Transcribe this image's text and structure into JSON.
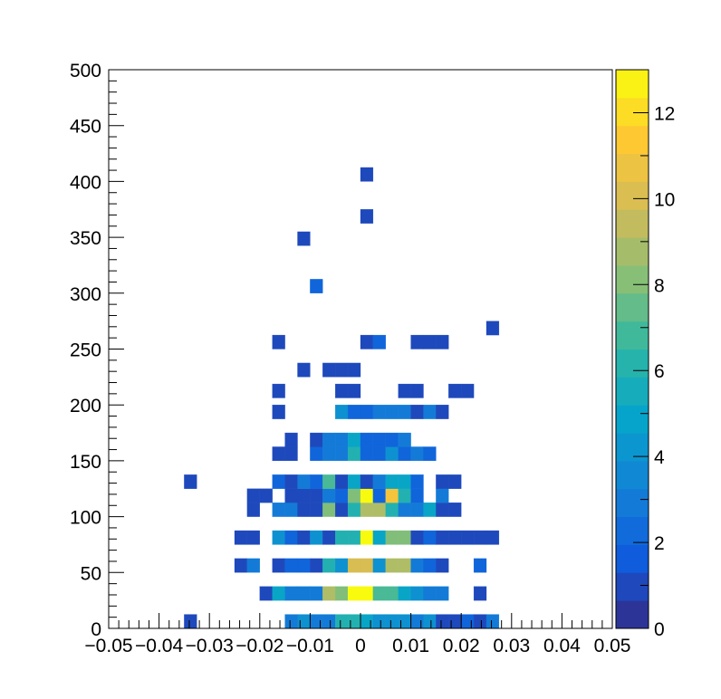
{
  "chart_data": {
    "type": "heatmap",
    "title": "",
    "xlabel": "",
    "ylabel": "",
    "xlim": [
      -0.05,
      0.05
    ],
    "ylim": [
      0,
      500
    ],
    "zlim": [
      0,
      13
    ],
    "bin_width_x": 0.0025,
    "bin_width_y": 12.5,
    "x_tick_labels": [
      "−0.05",
      "−0.04",
      "−0.03",
      "−0.02",
      "−0.01",
      "0",
      "0.01",
      "0.02",
      "0.03",
      "0.04",
      "0.05"
    ],
    "x_tick_values": [
      -0.05,
      -0.04,
      -0.03,
      -0.02,
      -0.01,
      0,
      0.01,
      0.02,
      0.03,
      0.04,
      0.05
    ],
    "y_tick_labels": [
      "0",
      "50",
      "100",
      "150",
      "200",
      "250",
      "300",
      "350",
      "400",
      "450",
      "500"
    ],
    "y_tick_values": [
      0,
      50,
      100,
      150,
      200,
      250,
      300,
      350,
      400,
      450,
      500
    ],
    "z_tick_labels": [
      "0",
      "2",
      "4",
      "6",
      "8",
      "10",
      "12"
    ],
    "z_tick_values": [
      0,
      2,
      4,
      6,
      8,
      10,
      12
    ],
    "grid": false,
    "colormap": [
      "#352a87",
      "#0f5cdd",
      "#1481d6",
      "#06a4ca",
      "#2eb7a4",
      "#87bf77",
      "#d1bb59",
      "#fec832",
      "#f9fb0e"
    ],
    "bins": [
      [
        -0.03375,
        6.25,
        1
      ],
      [
        -0.01375,
        6.25,
        3
      ],
      [
        -0.01125,
        6.25,
        4
      ],
      [
        -0.00875,
        6.25,
        3
      ],
      [
        -0.00625,
        6.25,
        3
      ],
      [
        -0.00375,
        6.25,
        6
      ],
      [
        -0.00125,
        6.25,
        6
      ],
      [
        0.00125,
        6.25,
        5
      ],
      [
        0.00375,
        6.25,
        4
      ],
      [
        0.00625,
        6.25,
        4
      ],
      [
        0.00875,
        6.25,
        4
      ],
      [
        0.01125,
        6.25,
        3
      ],
      [
        0.01375,
        6.25,
        4
      ],
      [
        0.01625,
        6.25,
        1
      ],
      [
        0.01875,
        6.25,
        1
      ],
      [
        0.02125,
        6.25,
        2
      ],
      [
        0.02375,
        6.25,
        1
      ],
      [
        0.02625,
        6.25,
        3
      ],
      [
        -0.01875,
        31.25,
        1
      ],
      [
        -0.01625,
        31.25,
        5
      ],
      [
        -0.01375,
        31.25,
        3
      ],
      [
        -0.01125,
        31.25,
        3
      ],
      [
        -0.00875,
        31.25,
        3
      ],
      [
        -0.00625,
        31.25,
        9
      ],
      [
        -0.00375,
        31.25,
        8
      ],
      [
        -0.00125,
        31.25,
        13
      ],
      [
        0.00125,
        31.25,
        13
      ],
      [
        0.00375,
        31.25,
        7
      ],
      [
        0.00625,
        31.25,
        7
      ],
      [
        0.00875,
        31.25,
        5
      ],
      [
        0.01125,
        31.25,
        4
      ],
      [
        0.01375,
        31.25,
        3
      ],
      [
        0.01625,
        31.25,
        3
      ],
      [
        0.02375,
        31.25,
        1
      ],
      [
        -0.02375,
        56.25,
        1
      ],
      [
        -0.02125,
        56.25,
        3
      ],
      [
        -0.01625,
        56.25,
        1
      ],
      [
        -0.01375,
        56.25,
        2
      ],
      [
        -0.01125,
        56.25,
        2
      ],
      [
        -0.00875,
        56.25,
        1
      ],
      [
        -0.00625,
        56.25,
        6
      ],
      [
        -0.00375,
        56.25,
        4
      ],
      [
        -0.00125,
        56.25,
        10
      ],
      [
        0.00125,
        56.25,
        10
      ],
      [
        0.00375,
        56.25,
        4
      ],
      [
        0.00625,
        56.25,
        9
      ],
      [
        0.00875,
        56.25,
        9
      ],
      [
        0.01125,
        56.25,
        3
      ],
      [
        0.01375,
        56.25,
        2
      ],
      [
        0.01625,
        56.25,
        1
      ],
      [
        0.02375,
        56.25,
        2
      ],
      [
        -0.02375,
        81.25,
        1
      ],
      [
        -0.02125,
        81.25,
        1
      ],
      [
        -0.01625,
        81.25,
        4
      ],
      [
        -0.01375,
        81.25,
        2
      ],
      [
        -0.01125,
        81.25,
        1
      ],
      [
        -0.00875,
        81.25,
        4
      ],
      [
        -0.00625,
        81.25,
        1
      ],
      [
        -0.00375,
        81.25,
        6
      ],
      [
        -0.00125,
        81.25,
        6
      ],
      [
        0.00125,
        81.25,
        13
      ],
      [
        0.00375,
        81.25,
        5
      ],
      [
        0.00625,
        81.25,
        8
      ],
      [
        0.00875,
        81.25,
        8
      ],
      [
        0.01125,
        81.25,
        1
      ],
      [
        0.01375,
        81.25,
        2
      ],
      [
        0.01625,
        81.25,
        1
      ],
      [
        0.01875,
        81.25,
        1
      ],
      [
        0.02125,
        81.25,
        1
      ],
      [
        0.02375,
        81.25,
        1
      ],
      [
        0.02625,
        81.25,
        1
      ],
      [
        -0.02125,
        106.25,
        1
      ],
      [
        -0.01625,
        106.25,
        3
      ],
      [
        -0.01375,
        106.25,
        3
      ],
      [
        -0.01125,
        106.25,
        1
      ],
      [
        -0.00875,
        106.25,
        1
      ],
      [
        -0.00625,
        106.25,
        8
      ],
      [
        -0.00375,
        106.25,
        1
      ],
      [
        -0.00125,
        106.25,
        6
      ],
      [
        0.00125,
        106.25,
        9
      ],
      [
        0.00375,
        106.25,
        9
      ],
      [
        0.00625,
        106.25,
        6
      ],
      [
        0.00875,
        106.25,
        3
      ],
      [
        0.01125,
        106.25,
        3
      ],
      [
        0.01375,
        106.25,
        5
      ],
      [
        0.01625,
        106.25,
        1
      ],
      [
        0.01875,
        106.25,
        1
      ],
      [
        -0.02125,
        118.75,
        1
      ],
      [
        -0.01875,
        118.75,
        1
      ],
      [
        -0.01375,
        118.75,
        1
      ],
      [
        -0.01125,
        118.75,
        1
      ],
      [
        -0.00875,
        118.75,
        1
      ],
      [
        -0.00625,
        118.75,
        3
      ],
      [
        -0.00375,
        118.75,
        2
      ],
      [
        -0.00125,
        118.75,
        8
      ],
      [
        0.00125,
        118.75,
        13
      ],
      [
        0.00375,
        118.75,
        2
      ],
      [
        0.00625,
        118.75,
        11
      ],
      [
        0.00875,
        118.75,
        6
      ],
      [
        0.01125,
        118.75,
        2
      ],
      [
        0.01625,
        118.75,
        3
      ],
      [
        -0.03375,
        131.25,
        1
      ],
      [
        -0.01625,
        131.25,
        2
      ],
      [
        -0.01375,
        131.25,
        1
      ],
      [
        -0.01125,
        131.25,
        3
      ],
      [
        -0.00875,
        131.25,
        2
      ],
      [
        -0.00625,
        131.25,
        7
      ],
      [
        -0.00375,
        131.25,
        1
      ],
      [
        -0.00125,
        131.25,
        5
      ],
      [
        0.00125,
        131.25,
        1
      ],
      [
        0.00375,
        131.25,
        3
      ],
      [
        0.00625,
        131.25,
        5
      ],
      [
        0.00875,
        131.25,
        5
      ],
      [
        0.01125,
        131.25,
        2
      ],
      [
        0.01625,
        131.25,
        1
      ],
      [
        0.01875,
        131.25,
        1
      ],
      [
        -0.01625,
        156.25,
        1
      ],
      [
        -0.01375,
        156.25,
        1
      ],
      [
        -0.00875,
        156.25,
        2
      ],
      [
        -0.00625,
        156.25,
        3
      ],
      [
        -0.00375,
        156.25,
        3
      ],
      [
        -0.00125,
        156.25,
        6
      ],
      [
        0.00125,
        156.25,
        2
      ],
      [
        0.00375,
        156.25,
        2
      ],
      [
        0.00625,
        156.25,
        4
      ],
      [
        0.00875,
        156.25,
        2
      ],
      [
        0.01125,
        156.25,
        3
      ],
      [
        0.01375,
        156.25,
        2
      ],
      [
        -0.01375,
        168.75,
        1
      ],
      [
        -0.00875,
        168.75,
        1
      ],
      [
        -0.00625,
        168.75,
        3
      ],
      [
        -0.00375,
        168.75,
        3
      ],
      [
        -0.00125,
        168.75,
        5
      ],
      [
        0.00125,
        168.75,
        2
      ],
      [
        0.00375,
        168.75,
        2
      ],
      [
        0.00625,
        168.75,
        2
      ],
      [
        0.00875,
        168.75,
        3
      ],
      [
        -0.01625,
        193.75,
        1
      ],
      [
        -0.00375,
        193.75,
        4
      ],
      [
        -0.00125,
        193.75,
        2
      ],
      [
        0.00125,
        193.75,
        2
      ],
      [
        0.00375,
        193.75,
        3
      ],
      [
        0.00625,
        193.75,
        3
      ],
      [
        0.00875,
        193.75,
        3
      ],
      [
        0.01125,
        193.75,
        1
      ],
      [
        0.01375,
        193.75,
        3
      ],
      [
        0.01625,
        193.75,
        1
      ],
      [
        -0.01625,
        212.5,
        1
      ],
      [
        -0.00375,
        212.5,
        1
      ],
      [
        -0.00125,
        212.5,
        1
      ],
      [
        0.00875,
        212.5,
        1
      ],
      [
        0.01125,
        212.5,
        1
      ],
      [
        0.01875,
        212.5,
        1
      ],
      [
        0.02125,
        212.5,
        1
      ],
      [
        -0.01125,
        231.25,
        1
      ],
      [
        -0.00625,
        231.25,
        1
      ],
      [
        -0.00375,
        231.25,
        1
      ],
      [
        -0.00125,
        231.25,
        1
      ],
      [
        -0.01625,
        256.25,
        1
      ],
      [
        0.00125,
        256.25,
        1
      ],
      [
        0.00375,
        256.25,
        2
      ],
      [
        0.01125,
        256.25,
        1
      ],
      [
        0.01375,
        256.25,
        1
      ],
      [
        0.01625,
        256.25,
        1
      ],
      [
        0.02625,
        268.75,
        1
      ],
      [
        -0.00875,
        306.25,
        2
      ],
      [
        -0.01125,
        348.75,
        1
      ],
      [
        0.00125,
        368.75,
        1
      ],
      [
        0.00125,
        406.25,
        1
      ]
    ]
  }
}
